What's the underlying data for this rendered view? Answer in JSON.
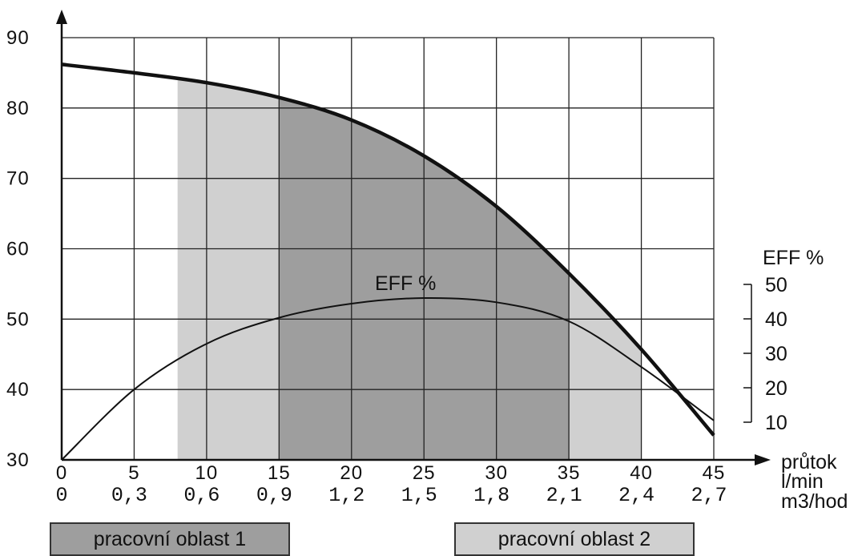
{
  "chart_data": {
    "type": "line",
    "x": [
      0,
      5,
      10,
      15,
      20,
      25,
      30,
      35,
      40,
      45
    ],
    "x_tick_labels": [
      "0",
      "5",
      "10",
      "15",
      "20",
      "25",
      "30",
      "35",
      "40",
      "45"
    ],
    "x2_tick_labels": [
      "0",
      "0,3",
      "0,6",
      "0,9",
      "1,2",
      "1,5",
      "1,8",
      "2,1",
      "2,4",
      "2,7"
    ],
    "xlabel_lines": [
      "průtok",
      "l/min",
      "m3/hod"
    ],
    "xlim": [
      0,
      45
    ],
    "ylim": [
      30,
      90
    ],
    "y_ticks": [
      30,
      40,
      50,
      60,
      70,
      80,
      90
    ],
    "y_tick_labels": [
      "30",
      "40",
      "50",
      "60",
      "70",
      "80",
      "90"
    ],
    "y2_label": "EFF %",
    "y2_ticks": [
      10,
      20,
      30,
      40,
      50
    ],
    "y2_tick_labels": [
      "10",
      "20",
      "30",
      "40",
      "50"
    ],
    "grid": true,
    "series": [
      {
        "values": [
          86.2,
          85,
          83.6,
          81.5,
          78.3,
          73.2,
          66,
          56.5,
          45.7,
          33.5
        ]
      },
      {
        "name": "EFF %",
        "values": [
          30,
          40,
          46.5,
          50.2,
          52.2,
          53,
          52.4,
          49.7,
          43.2,
          35.6
        ]
      }
    ],
    "regions": [
      {
        "name": "pracovní oblast 2",
        "x_start": 8,
        "x_end": 40,
        "color": "#d0d0d0"
      },
      {
        "name": "pracovní oblast 1",
        "x_start": 15,
        "x_end": 35,
        "color": "#9e9e9e"
      }
    ],
    "legend": [
      {
        "label": "pracovní oblast 1",
        "color": "#9e9e9e"
      },
      {
        "label": "pracovní oblast 2",
        "color": "#d0d0d0"
      }
    ]
  }
}
